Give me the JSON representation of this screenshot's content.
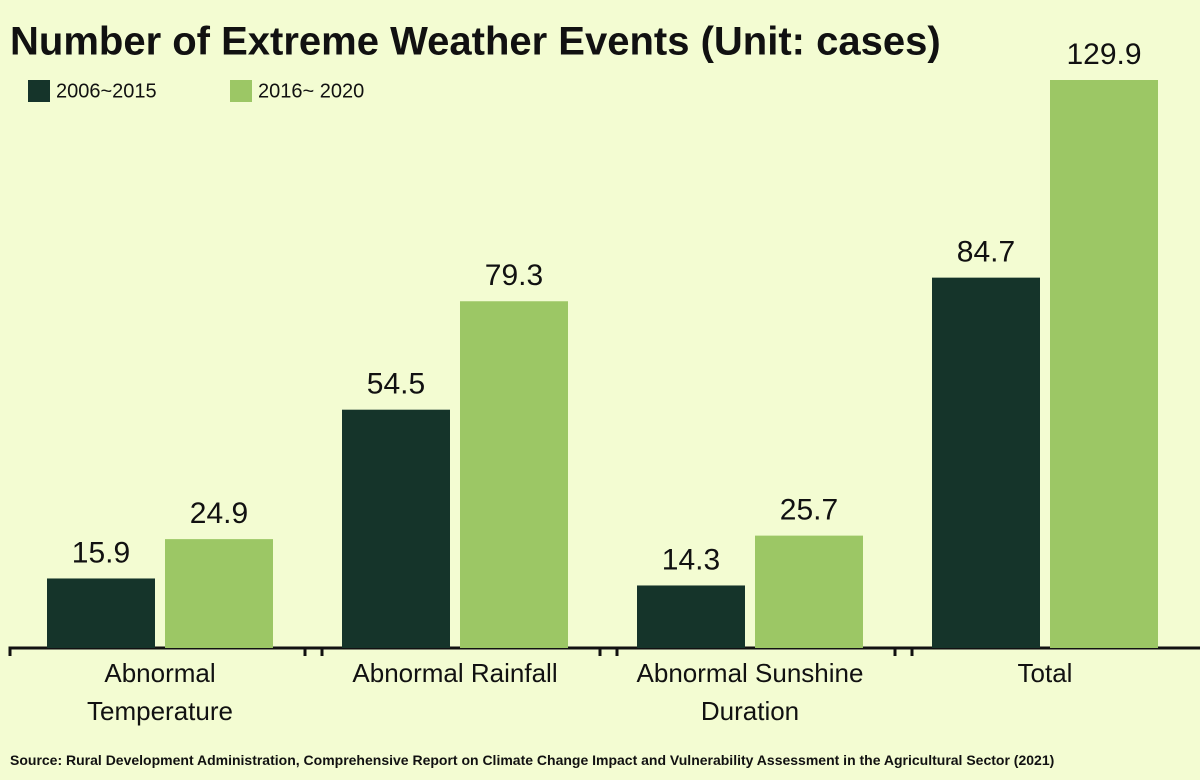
{
  "chart_data": {
    "type": "bar",
    "title": "Number of Extreme Weather Events (Unit: cases)",
    "categories": [
      "Abnormal Temperature",
      "Abnormal Rainfall",
      "Abnormal Sunshine Duration",
      "Total"
    ],
    "series": [
      {
        "name": "2006~2015",
        "color": "#15342a",
        "values": [
          15.9,
          54.5,
          14.3,
          84.7
        ]
      },
      {
        "name": "2016~ 2020",
        "color": "#9cc765",
        "values": [
          24.9,
          79.3,
          25.7,
          129.9
        ]
      }
    ],
    "source": "Source: Rural Development Administration, Comprehensive Report on Climate Change Impact and Vulnerability Assessment in the Agricultural Sector (2021)"
  }
}
